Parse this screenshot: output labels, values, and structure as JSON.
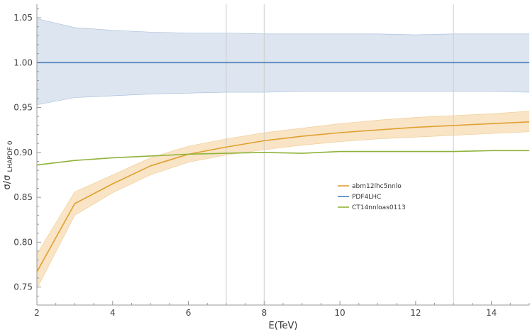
{
  "chart_data": {
    "type": "line",
    "title": "",
    "xlabel": "E(TeV)",
    "ylabel": {
      "main": "σ/σ",
      "subscript": "LHAPDF 0"
    },
    "xlim": [
      2,
      15
    ],
    "ylim": [
      0.73,
      1.065
    ],
    "x_ticks": [
      2,
      4,
      6,
      8,
      10,
      12,
      14
    ],
    "y_ticks": [
      0.75,
      0.8,
      0.85,
      0.9,
      0.95,
      1.0,
      1.05
    ],
    "vertical_reference_lines": [
      7,
      8,
      13
    ],
    "grid": false,
    "legend_position": "center-right",
    "x": [
      2,
      3,
      4,
      5,
      6,
      7,
      8,
      9,
      10,
      11,
      12,
      13,
      14,
      15
    ],
    "series": [
      {
        "name": "abm12lhc5nnlo",
        "color": "#e0a030",
        "band_color": "#f9e4c6",
        "values": [
          0.767,
          0.843,
          0.865,
          0.885,
          0.898,
          0.906,
          0.913,
          0.918,
          0.922,
          0.925,
          0.928,
          0.93,
          0.932,
          0.934
        ],
        "band_upper": [
          0.787,
          0.856,
          0.875,
          0.894,
          0.907,
          0.915,
          0.922,
          0.927,
          0.932,
          0.936,
          0.939,
          0.941,
          0.943,
          0.946
        ],
        "band_lower": [
          0.748,
          0.83,
          0.855,
          0.875,
          0.889,
          0.897,
          0.903,
          0.908,
          0.912,
          0.915,
          0.917,
          0.919,
          0.921,
          0.923
        ]
      },
      {
        "name": "PDF4LHC",
        "color": "#4a7fba",
        "band_color": "#dde5f0",
        "values": [
          1.0,
          1.0,
          1.0,
          1.0,
          1.0,
          1.0,
          1.0,
          1.0,
          1.0,
          1.0,
          1.0,
          1.0,
          1.0,
          1.0
        ],
        "band_upper": [
          1.049,
          1.039,
          1.036,
          1.034,
          1.033,
          1.033,
          1.032,
          1.032,
          1.032,
          1.032,
          1.031,
          1.032,
          1.032,
          1.032
        ],
        "band_lower": [
          0.953,
          0.961,
          0.963,
          0.965,
          0.966,
          0.967,
          0.967,
          0.968,
          0.968,
          0.968,
          0.968,
          0.968,
          0.968,
          0.967
        ]
      },
      {
        "name": "CT14nnloas0113",
        "color": "#8fb33a",
        "values": [
          0.886,
          0.891,
          0.894,
          0.896,
          0.898,
          0.899,
          0.9,
          0.899,
          0.901,
          0.901,
          0.901,
          0.901,
          0.902,
          0.902
        ]
      }
    ]
  }
}
